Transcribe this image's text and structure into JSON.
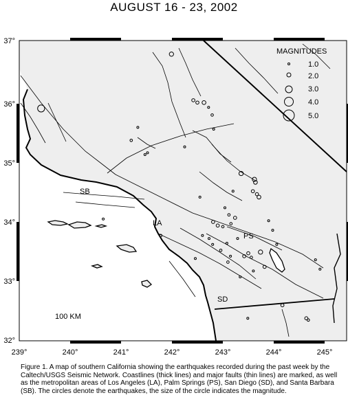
{
  "title": "AUGUST 16 - 23, 2002",
  "lon_ticks": [
    "239°",
    "240°",
    "241°",
    "242°",
    "243°",
    "244°",
    "245°"
  ],
  "lat_ticks": [
    "37°",
    "36°",
    "35°",
    "34°",
    "33°",
    "32°"
  ],
  "legend": {
    "title": "MAGNITUDES",
    "items": [
      "1.0",
      "2.0",
      "3.0",
      "4.0",
      "5.0"
    ]
  },
  "cities": {
    "sb": "SB",
    "la": "LA",
    "ps": "PS",
    "sd": "SD"
  },
  "scale_label": "100 KM",
  "caption": "Figure 1. A map of southern California showing the earthquakes recorded during the past week by the Caltech/USGS Seismic Network. Coastlines (thick lines) and major faults (thin lines) are marked, as well as the metropolitan areas of Los Angeles (LA), Palm Springs (PS), San Diego (SD), and Santa Barbara (SB). The circles denote the earthquakes, the size of the circle indicates the magnitude.",
  "map_data": {
    "extent": {
      "lon": [
        239,
        245.4
      ],
      "lat": [
        32,
        37.1
      ]
    },
    "coast_color": "#000000",
    "land_shade": "#eeeeee",
    "cities": [
      {
        "key": "sb",
        "lon": 240.3,
        "lat": 34.42
      },
      {
        "key": "la",
        "lon": 241.75,
        "lat": 34.05
      },
      {
        "key": "ps",
        "lon": 243.46,
        "lat": 33.83
      },
      {
        "key": "sd",
        "lon": 242.84,
        "lat": 32.72
      }
    ],
    "quakes": [
      {
        "lon": 239.43,
        "lat": 35.9,
        "mag": 3.2
      },
      {
        "lon": 241.99,
        "lat": 36.82,
        "mag": 2.0
      },
      {
        "lon": 241.33,
        "lat": 35.58,
        "mag": 1.0
      },
      {
        "lon": 241.2,
        "lat": 35.36,
        "mag": 1.2
      },
      {
        "lon": 241.47,
        "lat": 35.12,
        "mag": 1.0
      },
      {
        "lon": 241.52,
        "lat": 35.15,
        "mag": 1.0
      },
      {
        "lon": 242.42,
        "lat": 36.04,
        "mag": 1.5
      },
      {
        "lon": 242.5,
        "lat": 36.0,
        "mag": 1.5
      },
      {
        "lon": 242.63,
        "lat": 36.0,
        "mag": 1.8
      },
      {
        "lon": 242.72,
        "lat": 35.92,
        "mag": 1.0
      },
      {
        "lon": 242.79,
        "lat": 35.79,
        "mag": 1.2
      },
      {
        "lon": 242.82,
        "lat": 35.55,
        "mag": 1.0
      },
      {
        "lon": 242.25,
        "lat": 35.25,
        "mag": 1.0
      },
      {
        "lon": 243.36,
        "lat": 34.8,
        "mag": 2.0
      },
      {
        "lon": 243.62,
        "lat": 34.7,
        "mag": 2.0
      },
      {
        "lon": 243.64,
        "lat": 34.65,
        "mag": 1.8
      },
      {
        "lon": 243.59,
        "lat": 34.5,
        "mag": 1.5
      },
      {
        "lon": 243.67,
        "lat": 34.45,
        "mag": 1.5
      },
      {
        "lon": 243.71,
        "lat": 34.4,
        "mag": 1.8
      },
      {
        "lon": 243.2,
        "lat": 34.5,
        "mag": 1.0
      },
      {
        "lon": 242.55,
        "lat": 34.4,
        "mag": 1.0
      },
      {
        "lon": 243.04,
        "lat": 34.22,
        "mag": 1.0
      },
      {
        "lon": 243.12,
        "lat": 34.1,
        "mag": 1.2
      },
      {
        "lon": 243.24,
        "lat": 34.05,
        "mag": 1.5
      },
      {
        "lon": 243.16,
        "lat": 33.95,
        "mag": 1.2
      },
      {
        "lon": 242.81,
        "lat": 33.98,
        "mag": 1.5
      },
      {
        "lon": 242.9,
        "lat": 33.92,
        "mag": 1.5
      },
      {
        "lon": 243.0,
        "lat": 33.9,
        "mag": 1.2
      },
      {
        "lon": 242.6,
        "lat": 33.75,
        "mag": 1.0
      },
      {
        "lon": 242.73,
        "lat": 33.7,
        "mag": 1.0
      },
      {
        "lon": 242.8,
        "lat": 33.6,
        "mag": 1.0
      },
      {
        "lon": 242.96,
        "lat": 33.5,
        "mag": 1.2
      },
      {
        "lon": 243.08,
        "lat": 33.62,
        "mag": 1.0
      },
      {
        "lon": 243.15,
        "lat": 33.4,
        "mag": 1.0
      },
      {
        "lon": 243.1,
        "lat": 33.3,
        "mag": 1.2
      },
      {
        "lon": 243.29,
        "lat": 33.7,
        "mag": 1.0
      },
      {
        "lon": 243.42,
        "lat": 33.4,
        "mag": 1.5
      },
      {
        "lon": 243.5,
        "lat": 33.45,
        "mag": 1.5
      },
      {
        "lon": 243.56,
        "lat": 33.38,
        "mag": 1.2
      },
      {
        "lon": 243.74,
        "lat": 33.47,
        "mag": 2.0
      },
      {
        "lon": 243.82,
        "lat": 33.22,
        "mag": 1.5
      },
      {
        "lon": 243.6,
        "lat": 33.15,
        "mag": 1.0
      },
      {
        "lon": 243.34,
        "lat": 33.05,
        "mag": 1.0
      },
      {
        "lon": 244.17,
        "lat": 32.57,
        "mag": 1.5
      },
      {
        "lon": 244.64,
        "lat": 32.35,
        "mag": 1.5
      },
      {
        "lon": 244.68,
        "lat": 32.32,
        "mag": 1.2
      },
      {
        "lon": 243.49,
        "lat": 32.35,
        "mag": 1.0
      },
      {
        "lon": 244.82,
        "lat": 33.34,
        "mag": 1.0
      },
      {
        "lon": 244.91,
        "lat": 33.18,
        "mag": 1.0
      },
      {
        "lon": 242.46,
        "lat": 33.36,
        "mag": 1.0
      },
      {
        "lon": 241.78,
        "lat": 33.75,
        "mag": 1.2
      },
      {
        "lon": 240.65,
        "lat": 34.03,
        "mag": 1.0
      },
      {
        "lon": 243.9,
        "lat": 34.0,
        "mag": 1.0
      },
      {
        "lon": 243.98,
        "lat": 33.84,
        "mag": 1.0
      },
      {
        "lon": 244.06,
        "lat": 33.6,
        "mag": 1.0
      }
    ]
  }
}
